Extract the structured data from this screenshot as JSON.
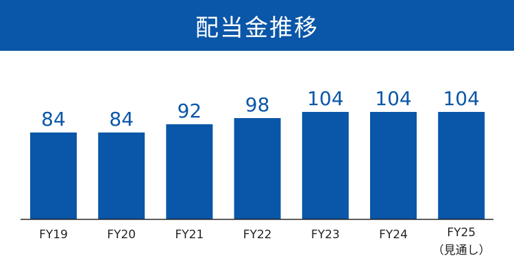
{
  "header": {
    "title": "配当金推移"
  },
  "colors": {
    "bar": "#0a56a8",
    "label": "#0a56a8",
    "tick": "#222222",
    "header_bg": "#0a56a8",
    "axis": "#222222"
  },
  "chart_data": {
    "type": "bar",
    "title": "配当金推移",
    "categories": [
      "FY19",
      "FY20",
      "FY21",
      "FY22",
      "FY23",
      "FY24",
      "FY25"
    ],
    "category_notes": [
      "",
      "",
      "",
      "",
      "",
      "",
      "（見通し）"
    ],
    "values": [
      84,
      84,
      92,
      98,
      104,
      104,
      104
    ],
    "data_labels": [
      "84",
      "84",
      "92",
      "98",
      "104",
      "104",
      "104"
    ],
    "ylim": [
      0,
      118
    ],
    "grid": false,
    "legend": "none"
  }
}
